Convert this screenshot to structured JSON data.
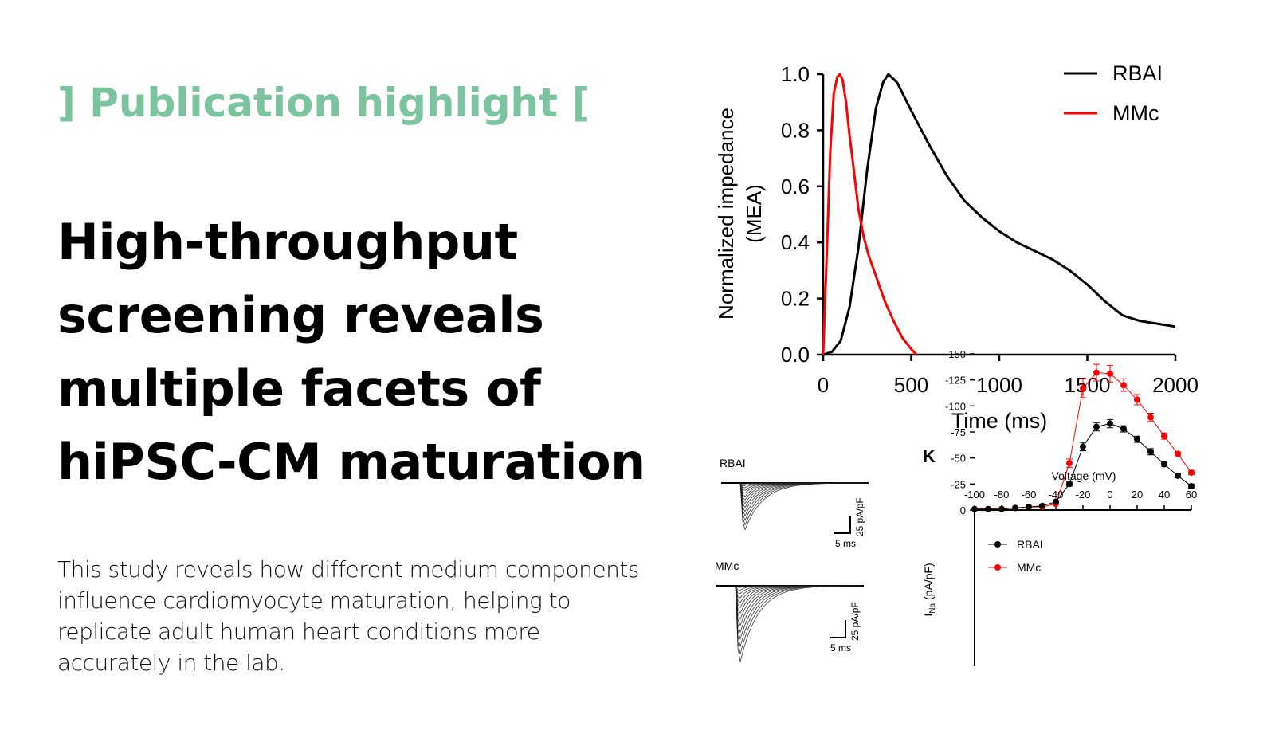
{
  "highlight": "] Publication highlight [",
  "title_lines": [
    "High-throughput",
    "screening reveals",
    "multiple facets of",
    "hiPSC-CM maturation"
  ],
  "description_lines": [
    "This study reveals how different medium components",
    "influence cardiomyocyte maturation, helping to",
    "replicate adult human heart conditions more",
    "accurately in the lab."
  ],
  "colors": {
    "accent": "#7cc49f",
    "rbai": "#000000",
    "mmc": "#ff0000"
  },
  "chart_data": [
    {
      "type": "line",
      "title": "",
      "xlabel": "Time (ms)",
      "ylabel": "Normalized impedance (MEA)",
      "ylabel_lines": [
        "Normalized impedance",
        "(MEA)"
      ],
      "xlim": [
        0,
        2000
      ],
      "ylim": [
        0,
        1
      ],
      "xticks": [
        "0",
        "500",
        "1000",
        "1500",
        "2000"
      ],
      "yticks": [
        "0.0",
        "0.2",
        "0.4",
        "0.6",
        "0.8",
        "1.0"
      ],
      "legend": "top-right",
      "series": [
        {
          "name": "RBAI",
          "color": "#000000",
          "x": [
            0,
            50,
            100,
            150,
            200,
            250,
            300,
            340,
            370,
            420,
            500,
            600,
            700,
            800,
            900,
            1000,
            1100,
            1200,
            1300,
            1400,
            1500,
            1600,
            1700,
            1800,
            1900,
            2000
          ],
          "y": [
            0,
            0.01,
            0.05,
            0.17,
            0.38,
            0.66,
            0.88,
            0.97,
            1.0,
            0.97,
            0.87,
            0.75,
            0.64,
            0.55,
            0.49,
            0.44,
            0.4,
            0.37,
            0.34,
            0.3,
            0.25,
            0.19,
            0.14,
            0.12,
            0.11,
            0.1
          ]
        },
        {
          "name": "MMc",
          "color": "#ff0000",
          "x": [
            0,
            20,
            40,
            60,
            80,
            95,
            110,
            130,
            150,
            170,
            200,
            230,
            260,
            300,
            350,
            400,
            450,
            500,
            530
          ],
          "y": [
            0,
            0.35,
            0.72,
            0.93,
            0.99,
            1.0,
            0.98,
            0.9,
            0.78,
            0.68,
            0.52,
            0.42,
            0.35,
            0.28,
            0.19,
            0.12,
            0.06,
            0.02,
            0
          ]
        }
      ]
    },
    {
      "type": "line",
      "panel": "K",
      "title": "",
      "xlabel": "Voltage (mV)",
      "ylabel": "INa (pA/pF)",
      "ylabel_main": "I",
      "ylabel_sub": "Na",
      "ylabel_rest": " (pA/pF)",
      "xlim": [
        -100,
        60
      ],
      "ylim": [
        -150,
        0
      ],
      "xticks": [
        "-100",
        "-80",
        "-60",
        "-40",
        "-20",
        "0",
        "20",
        "40",
        "60"
      ],
      "yticks": [
        "0",
        "-25",
        "-50",
        "-75",
        "-100",
        "-125",
        "-150"
      ],
      "legend": "left",
      "x": [
        -100,
        -90,
        -80,
        -70,
        -60,
        -50,
        -40,
        -30,
        -20,
        -10,
        0,
        10,
        20,
        30,
        40,
        50,
        60
      ],
      "series": [
        {
          "name": "RBAI",
          "color": "#000000",
          "values": [
            -1,
            -1,
            -1,
            -2,
            -3,
            -4,
            -8,
            -25,
            -61,
            -80,
            -83,
            -78,
            -68,
            -56,
            -44,
            -33,
            -23
          ],
          "err": [
            0,
            0,
            0,
            0,
            0,
            0,
            1,
            2,
            4,
            4,
            4,
            3,
            3,
            3,
            2,
            2,
            2
          ]
        },
        {
          "name": "MMc",
          "color": "#ff0000",
          "values": [
            -1,
            -1,
            -1,
            -2,
            -3,
            -3,
            -6,
            -45,
            -117,
            -132,
            -131,
            -120,
            -106,
            -89,
            -71,
            -54,
            -36
          ],
          "err": [
            0,
            0,
            0,
            0,
            0,
            0,
            1,
            4,
            9,
            8,
            8,
            6,
            5,
            4,
            3,
            2,
            2
          ]
        }
      ]
    }
  ],
  "traces": [
    {
      "label": "RBAI",
      "scale_x": "5 ms",
      "scale_y": "25 pA/pF"
    },
    {
      "label": "MMc",
      "scale_x": "5 ms",
      "scale_y": "25 pA/pF"
    }
  ]
}
